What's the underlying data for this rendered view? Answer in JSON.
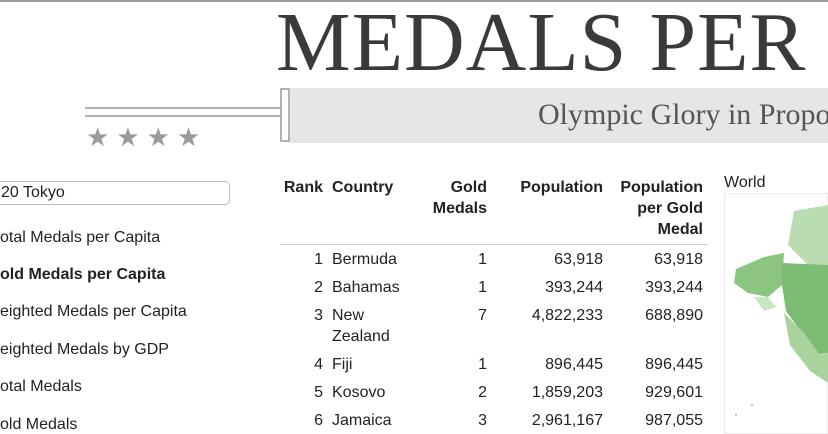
{
  "header": {
    "title": "MEDALS PER",
    "subtitle": "Olympic Glory in Proport"
  },
  "sidebar": {
    "select": "20 Tokyo",
    "items": [
      "otal Medals per Capita",
      "old Medals per Capita",
      "eighted Medals per Capita",
      "eighted Medals by GDP",
      "otal Medals",
      "old Medals"
    ]
  },
  "table": {
    "columns": [
      "Rank",
      "Country",
      "Gold Medals",
      "Population",
      "Population per Gold Medal"
    ],
    "rows": [
      [
        "1",
        "Bermuda",
        "1",
        "63,918",
        "63,918"
      ],
      [
        "2",
        "Bahamas",
        "1",
        "393,244",
        "393,244"
      ],
      [
        "3",
        "New Zealand",
        "7",
        "4,822,233",
        "688,890"
      ],
      [
        "4",
        "Fiji",
        "1",
        "896,445",
        "896,445"
      ],
      [
        "5",
        "Kosovo",
        "2",
        "1,859,203",
        "929,601"
      ],
      [
        "6",
        "Jamaica",
        "3",
        "2,961,167",
        "987,055"
      ]
    ]
  },
  "map": {
    "label": "World"
  }
}
